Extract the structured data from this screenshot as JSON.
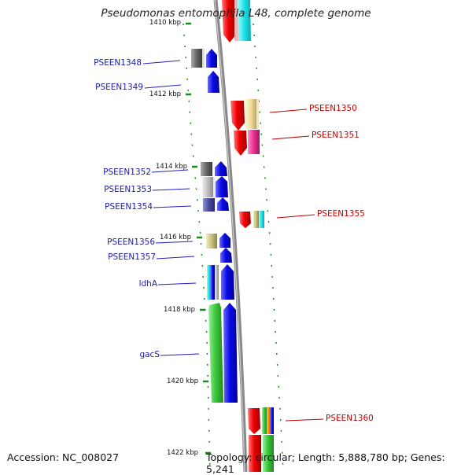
{
  "title": "Pseudomonas entomophila L48, complete genome",
  "footer": {
    "accession": "Accession: NC_008027",
    "summary": "Topology: circular; Length: 5,888,780 bp; Genes: 5,241"
  },
  "scale_labels": [
    "1410 kbp",
    "1412 kbp",
    "1414 kbp",
    "1416 kbp",
    "1418 kbp",
    "1420 kbp",
    "1422 kbp"
  ],
  "gene_labels_left": [
    "PSEEN1348",
    "PSEEN1349",
    "PSEEN1352",
    "PSEEN1353",
    "PSEEN1354",
    "PSEEN1356",
    "PSEEN1357",
    "ldhA",
    "gacS"
  ],
  "gene_labels_right": [
    "PSEEN1350",
    "PSEEN1351",
    "PSEEN1355",
    "PSEEN1360"
  ],
  "colors": {
    "red": "#ee0000",
    "blue": "#0a0ae6",
    "cyan": "#1fe0e8",
    "grey": "#666666",
    "green": "#3cc83c",
    "khaki": "#c8c080",
    "pink": "#e8308c",
    "wheat": "#eedc9a",
    "orange": "#ff8c00",
    "navy": "#4a4aa0",
    "tick_green": "#1a8a1a",
    "left_label": "#1a1aa8",
    "right_label": "#c40000"
  }
}
